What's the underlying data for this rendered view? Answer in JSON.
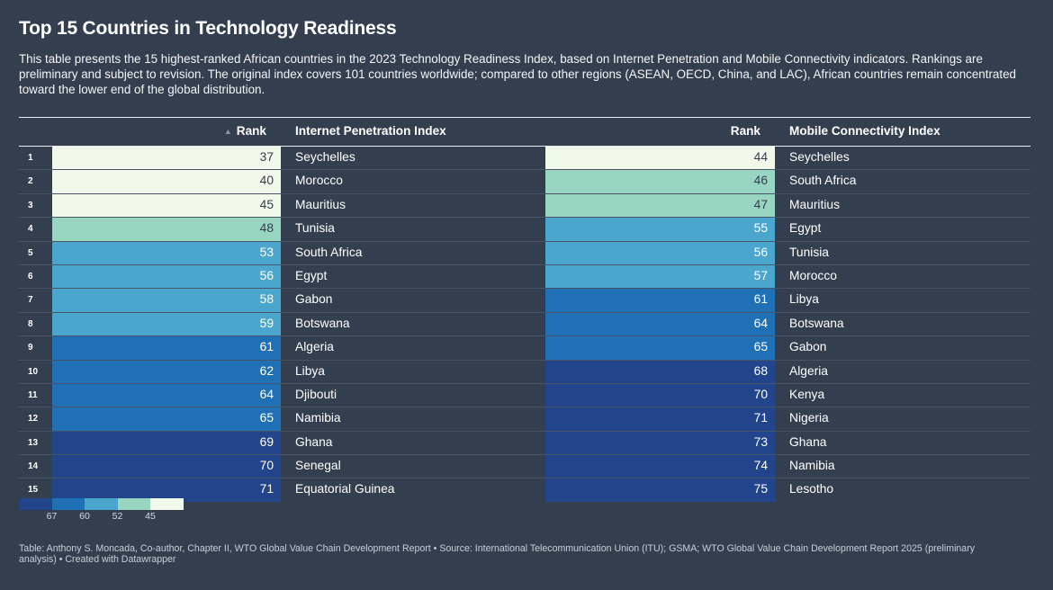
{
  "title": "Top 15 Countries in Technology Readiness",
  "description": "This table presents the 15 highest-ranked African countries in the 2023 Technology Readiness Index, based on Internet Penetration and Mobile Connectivity indicators. Rankings are preliminary and subject to revision. The original index covers 101 countries worldwide; compared to other regions (ASEAN, OECD, China, and LAC), African countries remain concentrated toward the lower end of the global distribution.",
  "headers": {
    "rank_a": "Rank",
    "internet": "Internet Penetration Index",
    "rank_b": "Rank",
    "mobile": "Mobile Connectivity Index"
  },
  "icons": {
    "sort": "sort-ascending-icon"
  },
  "colors": {
    "background": "#333f4f",
    "bins": [
      "#f1f9ea",
      "#98d6c2",
      "#4aa6cc",
      "#1f70b4",
      "#22448b"
    ]
  },
  "chart_data": {
    "type": "table",
    "columns": [
      "",
      "Rank",
      "Internet Penetration Index",
      "Rank",
      "Mobile Connectivity Index"
    ],
    "rows": [
      {
        "pos": "1",
        "internet_rank": 37,
        "internet_country": "Seychelles",
        "mobile_rank": 44,
        "mobile_country": "Seychelles"
      },
      {
        "pos": "2",
        "internet_rank": 40,
        "internet_country": "Morocco",
        "mobile_rank": 46,
        "mobile_country": "South Africa"
      },
      {
        "pos": "3",
        "internet_rank": 45,
        "internet_country": "Mauritius",
        "mobile_rank": 47,
        "mobile_country": "Mauritius"
      },
      {
        "pos": "4",
        "internet_rank": 48,
        "internet_country": "Tunisia",
        "mobile_rank": 55,
        "mobile_country": "Egypt"
      },
      {
        "pos": "5",
        "internet_rank": 53,
        "internet_country": "South Africa",
        "mobile_rank": 56,
        "mobile_country": "Tunisia"
      },
      {
        "pos": "6",
        "internet_rank": 56,
        "internet_country": "Egypt",
        "mobile_rank": 57,
        "mobile_country": "Morocco"
      },
      {
        "pos": "7",
        "internet_rank": 58,
        "internet_country": "Gabon",
        "mobile_rank": 61,
        "mobile_country": "Libya"
      },
      {
        "pos": "8",
        "internet_rank": 59,
        "internet_country": "Botswana",
        "mobile_rank": 64,
        "mobile_country": "Botswana"
      },
      {
        "pos": "9",
        "internet_rank": 61,
        "internet_country": "Algeria",
        "mobile_rank": 65,
        "mobile_country": "Gabon"
      },
      {
        "pos": "10",
        "internet_rank": 62,
        "internet_country": "Libya",
        "mobile_rank": 68,
        "mobile_country": "Algeria"
      },
      {
        "pos": "11",
        "internet_rank": 64,
        "internet_country": "Djibouti",
        "mobile_rank": 70,
        "mobile_country": "Kenya"
      },
      {
        "pos": "12",
        "internet_rank": 65,
        "internet_country": "Namibia",
        "mobile_rank": 71,
        "mobile_country": "Nigeria"
      },
      {
        "pos": "13",
        "internet_rank": 69,
        "internet_country": "Ghana",
        "mobile_rank": 73,
        "mobile_country": "Ghana"
      },
      {
        "pos": "14",
        "internet_rank": 70,
        "internet_country": "Senegal",
        "mobile_rank": 74,
        "mobile_country": "Namibia"
      },
      {
        "pos": "15",
        "internet_rank": 71,
        "internet_country": "Equatorial Guinea",
        "mobile_rank": 75,
        "mobile_country": "Lesotho"
      }
    ],
    "color_scale": {
      "thresholds": [
        45,
        52,
        60,
        67
      ],
      "colors": [
        "#f1f9ea",
        "#98d6c2",
        "#4aa6cc",
        "#1f70b4",
        "#22448b"
      ]
    },
    "legend": {
      "ticks": [
        "67",
        "60",
        "52",
        "45"
      ],
      "order": [
        "#22448b",
        "#1f70b4",
        "#4aa6cc",
        "#98d6c2",
        "#f1f9ea"
      ]
    }
  },
  "footer": "Table: Anthony S. Moncada, Co-author, Chapter II, WTO Global Value Chain Development Report • Source: International Telecommunication Union (ITU); GSMA; WTO Global Value Chain Development Report 2025 (preliminary analysis) • Created with Datawrapper"
}
